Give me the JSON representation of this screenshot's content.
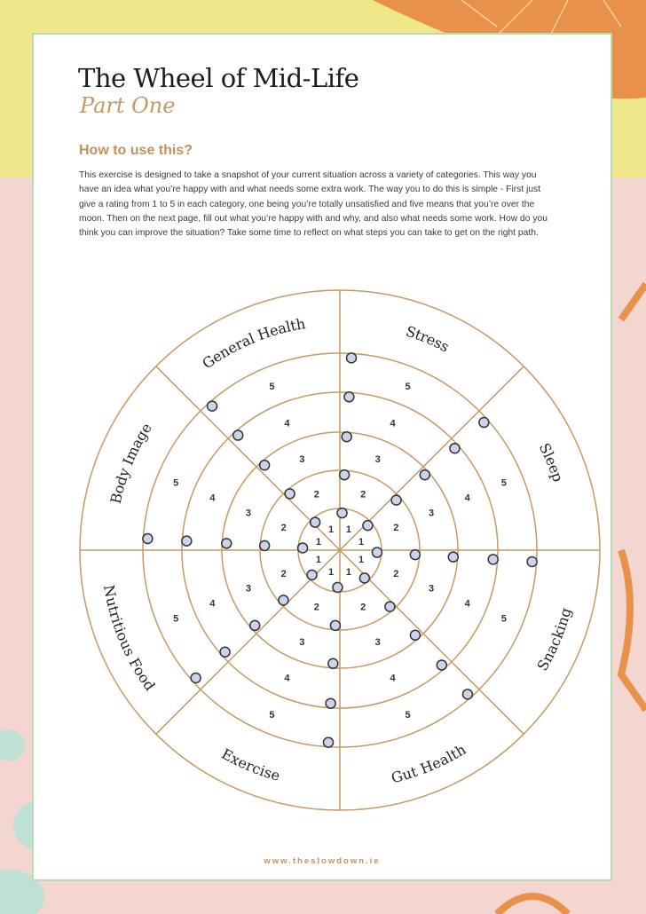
{
  "title": "The Wheel of Mid-Life",
  "subtitle": "Part One",
  "heading": "How to use this?",
  "intro": "This exercise is designed to take a snapshot of your current situation across a variety of categories. This way you have an idea what you’re happy with and what needs some extra work. The way you to do this is simple - First just give a rating from 1 to 5 in each category, one being you’re totally unsatisfied and five means that you’re over the moon. Then on the next page, fill out what you’re happy with and why, and also what needs some work. How do you think you can improve the situation? Take some time to reflect on what steps you can take to get on the right path.",
  "wheel": {
    "categories": [
      "Stress",
      "Sleep",
      "Snacking",
      "Gut Health",
      "Exercise",
      "Nutritious Food",
      "Body Image",
      "General Health"
    ],
    "ratings": [
      "1",
      "2",
      "3",
      "4",
      "5"
    ],
    "colors": {
      "line": "#c49a62",
      "dot": "#ccd3ea",
      "dot_stroke": "#333333"
    }
  },
  "footer": "www.theslowdown.ie"
}
